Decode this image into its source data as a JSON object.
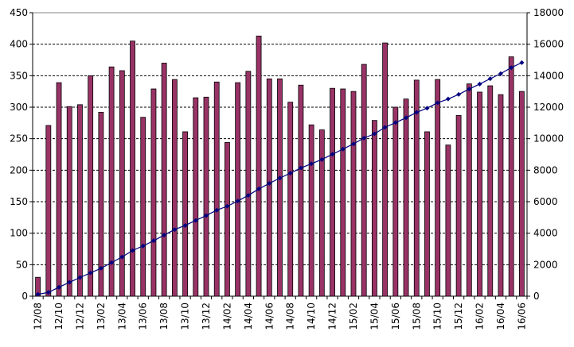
{
  "chart_data": {
    "type": "bar",
    "colors": {
      "bar": "#993366",
      "line": "#000080",
      "grid": "#000000"
    },
    "categories": [
      "12/08",
      "12/09",
      "12/10",
      "12/11",
      "12/12",
      "13/01",
      "13/02",
      "13/03",
      "13/04",
      "13/05",
      "13/06",
      "13/07",
      "13/08",
      "13/09",
      "13/10",
      "13/11",
      "13/12",
      "14/01",
      "14/02",
      "14/03",
      "14/04",
      "14/05",
      "14/06",
      "14/07",
      "14/08",
      "14/09",
      "14/10",
      "14/11",
      "14/12",
      "15/01",
      "15/02",
      "15/03",
      "15/04",
      "15/05",
      "15/06",
      "15/07",
      "15/08",
      "15/09",
      "15/10",
      "15/11",
      "15/12",
      "16/01",
      "16/02",
      "16/03",
      "16/04",
      "16/05",
      "16/06"
    ],
    "tick_labels": [
      "12/08",
      "12/10",
      "12/12",
      "13/02",
      "13/04",
      "13/06",
      "13/08",
      "13/10",
      "13/12",
      "14/02",
      "14/04",
      "14/06",
      "14/08",
      "14/10",
      "14/12",
      "15/02",
      "15/04",
      "15/06",
      "15/08",
      "15/10",
      "15/12",
      "16/02",
      "16/04",
      "16/06"
    ],
    "series": [
      {
        "axis": "left",
        "type": "bar",
        "values": [
          30,
          271,
          339,
          301,
          304,
          350,
          292,
          364,
          358,
          405,
          284,
          329,
          370,
          344,
          261,
          315,
          316,
          340,
          244,
          339,
          357,
          413,
          345,
          345,
          308,
          335,
          272,
          264,
          330,
          329,
          325,
          368,
          279,
          402,
          300,
          313,
          343,
          261,
          344,
          240,
          287,
          337,
          324,
          334,
          320,
          380,
          325
        ]
      },
      {
        "axis": "right",
        "type": "line",
        "values": [
          120,
          240,
          570,
          880,
          1185,
          1480,
          1770,
          2130,
          2490,
          2900,
          3190,
          3520,
          3880,
          4230,
          4490,
          4810,
          5120,
          5460,
          5710,
          6040,
          6400,
          6810,
          7160,
          7500,
          7810,
          8140,
          8410,
          8680,
          9010,
          9340,
          9670,
          10040,
          10310,
          10720,
          11020,
          11330,
          11670,
          11940,
          12280,
          12520,
          12810,
          13150,
          13470,
          13810,
          14130,
          14510,
          14830
        ]
      }
    ],
    "y_left": {
      "ticks": [
        "0",
        "50",
        "100",
        "150",
        "200",
        "250",
        "300",
        "350",
        "400",
        "450"
      ],
      "ylim": [
        0,
        450
      ]
    },
    "y_right": {
      "ticks": [
        "0",
        "2000",
        "4000",
        "6000",
        "8000",
        "10000",
        "12000",
        "14000",
        "16000",
        "18000"
      ],
      "ylim": [
        0,
        18000
      ]
    },
    "grid": true,
    "legend": false
  }
}
